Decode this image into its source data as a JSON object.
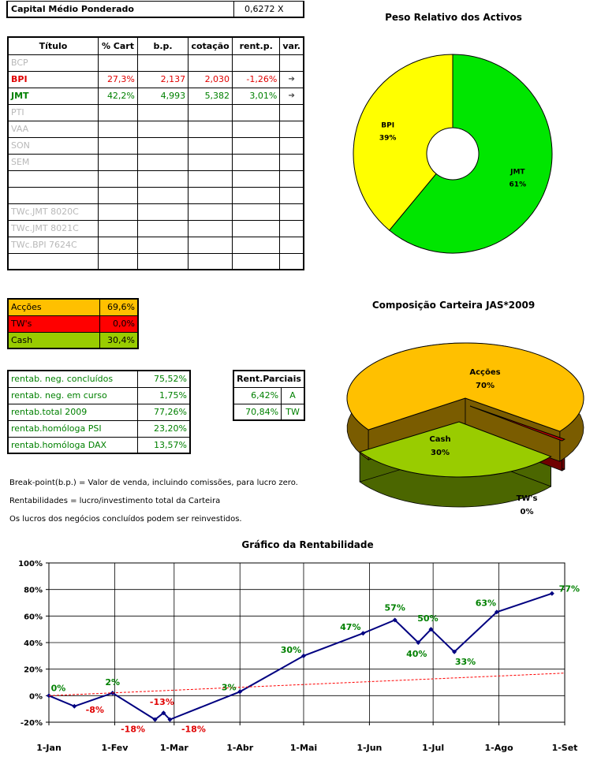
{
  "header": {
    "label": "Capital Médio Ponderado",
    "value": "0,6272 X"
  },
  "portfolio_table": {
    "headers": [
      "Título",
      "% Cart",
      "b.p.",
      "cotação",
      "rent.p.",
      "var."
    ],
    "rows": [
      [
        "BCP",
        "",
        "",
        "",
        "",
        ""
      ],
      [
        "BPI",
        "27,3%",
        "2,137",
        "2,030",
        "-1,26%",
        "➔"
      ],
      [
        "JMT",
        "42,2%",
        "4,993",
        "5,382",
        "3,01%",
        "➔"
      ],
      [
        "PTI",
        "",
        "",
        "",
        "",
        ""
      ],
      [
        "VAA",
        "",
        "",
        "",
        "",
        ""
      ],
      [
        "SON",
        "",
        "",
        "",
        "",
        ""
      ],
      [
        "SEM",
        "",
        "",
        "",
        "",
        ""
      ],
      [
        "",
        "",
        "",
        "",
        "",
        ""
      ],
      [
        "",
        "",
        "",
        "",
        "",
        ""
      ],
      [
        "TWc.JMT 8020C",
        "",
        "",
        "",
        "",
        ""
      ],
      [
        "TWc.JMT 8021C",
        "",
        "",
        "",
        "",
        ""
      ],
      [
        "TWc.BPI 7624C",
        "",
        "",
        "",
        "",
        ""
      ],
      [
        "",
        "",
        "",
        "",
        "",
        ""
      ]
    ]
  },
  "composition_table": {
    "rows": [
      {
        "label": "Acções",
        "value": "69,6%",
        "color": "#ffc000"
      },
      {
        "label": "TW's",
        "value": "0,0%",
        "color": "#ff0000"
      },
      {
        "label": "Cash",
        "value": "30,4%",
        "color": "#99cc00"
      }
    ]
  },
  "returns_table": {
    "rows": [
      {
        "label": "rentab. neg. concluídos",
        "value": "75,52%"
      },
      {
        "label": "rentab. neg. em curso",
        "value": "1,75%"
      },
      {
        "label": "rentab.total 2009",
        "value": "77,26%"
      },
      {
        "label": "rentab.homóloga PSI",
        "value": "23,20%"
      },
      {
        "label": "rentab.homóloga DAX",
        "value": "13,57%"
      }
    ]
  },
  "partial_table": {
    "header": "Rent.Parciais",
    "rows": [
      {
        "value": "6,42%",
        "code": "A"
      },
      {
        "value": "70,84%",
        "code": "TW"
      }
    ]
  },
  "notes": [
    "Break-point(b.p.) = Valor de venda, incluindo comissões, para lucro zero.",
    "Rentabilidades = lucro/investimento total da Carteira",
    "Os lucros dos negócios concluídos podem ser reinvestidos."
  ],
  "chart_data": [
    {
      "type": "pie",
      "variant": "doughnut",
      "title": "Peso Relativo dos Activos",
      "labels": [
        "JMT",
        "BPI"
      ],
      "values": [
        61,
        39
      ],
      "value_labels": [
        "61%",
        "39%"
      ],
      "colors": [
        "#00e600",
        "#ffff00"
      ]
    },
    {
      "type": "pie",
      "variant": "3d",
      "title": "Composição Carteira JAS*2009",
      "labels": [
        "Acções",
        "TW's",
        "Cash"
      ],
      "values": [
        70,
        0,
        30
      ],
      "value_labels": [
        "70%",
        "0%",
        "30%"
      ],
      "colors": [
        "#ffc000",
        "#c00000",
        "#99cc00"
      ]
    },
    {
      "type": "line",
      "title": "Gráfico da Rentabilidade",
      "x_ticks": [
        "1-Jan",
        "1-Fev",
        "1-Mar",
        "1-Abr",
        "1-Mai",
        "1-Jun",
        "1-Jul",
        "1-Ago",
        "1-Set"
      ],
      "y_ticks": [
        "100%",
        "80%",
        "60%",
        "40%",
        "20%",
        "0%",
        "-20%"
      ],
      "ylim": [
        -20,
        100
      ],
      "xlim": [
        "2009-01-01",
        "2009-09-01"
      ],
      "grid": true,
      "series": [
        {
          "color": "#000080",
          "points": [
            {
              "x": "2009-01-01",
              "y": 0
            },
            {
              "x": "2009-01-13",
              "y": -8
            },
            {
              "x": "2009-01-31",
              "y": 2
            },
            {
              "x": "2009-02-20",
              "y": -18
            },
            {
              "x": "2009-02-24",
              "y": -13
            },
            {
              "x": "2009-02-27",
              "y": -18
            },
            {
              "x": "2009-04-01",
              "y": 3
            },
            {
              "x": "2009-05-01",
              "y": 30
            },
            {
              "x": "2009-05-29",
              "y": 47
            },
            {
              "x": "2009-06-13",
              "y": 57
            },
            {
              "x": "2009-06-24",
              "y": 40
            },
            {
              "x": "2009-06-30",
              "y": 50
            },
            {
              "x": "2009-07-11",
              "y": 33
            },
            {
              "x": "2009-07-31",
              "y": 63
            },
            {
              "x": "2009-08-26",
              "y": 77
            }
          ]
        },
        {
          "color": "#ff0000",
          "dashed": true,
          "points": [
            {
              "x": "2009-01-01",
              "y": 0
            },
            {
              "x": "2009-09-01",
              "y": 17
            }
          ]
        }
      ],
      "data_labels": [
        {
          "text": "0%",
          "x": "2009-01-01",
          "y": 0,
          "color": "#008000"
        },
        {
          "text": "-8%",
          "x": "2009-01-13",
          "y": -8,
          "color": "#e00000"
        },
        {
          "text": "2%",
          "x": "2009-01-31",
          "y": 2,
          "color": "#008000"
        },
        {
          "text": "-18%",
          "x": "2009-02-20",
          "y": -18,
          "color": "#e00000"
        },
        {
          "text": "-13%",
          "x": "2009-02-24",
          "y": -13,
          "color": "#e00000"
        },
        {
          "text": "-18%",
          "x": "2009-02-27",
          "y": -18,
          "color": "#e00000"
        },
        {
          "text": "3%",
          "x": "2009-04-01",
          "y": 3,
          "color": "#008000"
        },
        {
          "text": "30%",
          "x": "2009-05-01",
          "y": 30,
          "color": "#008000"
        },
        {
          "text": "47%",
          "x": "2009-05-29",
          "y": 47,
          "color": "#008000"
        },
        {
          "text": "57%",
          "x": "2009-06-13",
          "y": 57,
          "color": "#008000"
        },
        {
          "text": "40%",
          "x": "2009-06-24",
          "y": 40,
          "color": "#008000"
        },
        {
          "text": "50%",
          "x": "2009-06-30",
          "y": 50,
          "color": "#008000"
        },
        {
          "text": "33%",
          "x": "2009-07-11",
          "y": 33,
          "color": "#008000"
        },
        {
          "text": "63%",
          "x": "2009-07-31",
          "y": 63,
          "color": "#008000"
        },
        {
          "text": "77%",
          "x": "2009-08-26",
          "y": 77,
          "color": "#008000"
        }
      ]
    }
  ]
}
